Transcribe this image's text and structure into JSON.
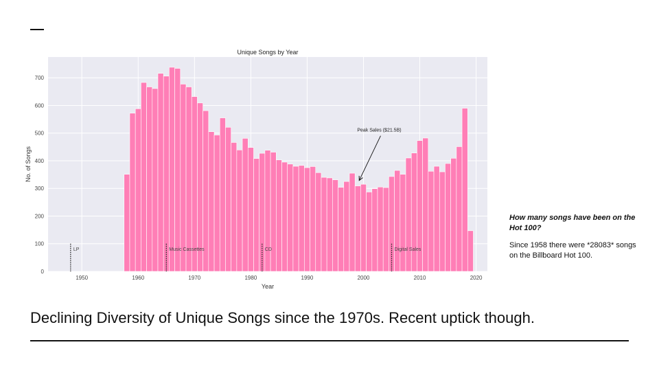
{
  "slide": {
    "question": "How many songs have been on the Hot 100?",
    "answer": "Since 1958 there were *28083* songs on the Billboard Hot 100.",
    "caption": "Declining Diversity of Unique Songs since the 1970s. Recent uptick though."
  },
  "chart_data": {
    "type": "bar",
    "title": "Unique Songs by Year",
    "xlabel": "Year",
    "ylabel": "No. of Songs",
    "xlim": [
      1944,
      2022
    ],
    "ylim": [
      0,
      775
    ],
    "xticks": [
      1950,
      1960,
      1970,
      1980,
      1990,
      2000,
      2010,
      2020
    ],
    "yticks": [
      0,
      100,
      200,
      300,
      400,
      500,
      600,
      700
    ],
    "grid": true,
    "bar_color": "#ff7eb6",
    "background_color": "#eaeaf2",
    "years": [
      1958,
      1959,
      1960,
      1961,
      1962,
      1963,
      1964,
      1965,
      1966,
      1967,
      1968,
      1969,
      1970,
      1971,
      1972,
      1973,
      1974,
      1975,
      1976,
      1977,
      1978,
      1979,
      1980,
      1981,
      1982,
      1983,
      1984,
      1985,
      1986,
      1987,
      1988,
      1989,
      1990,
      1991,
      1992,
      1993,
      1994,
      1995,
      1996,
      1997,
      1998,
      1999,
      2000,
      2001,
      2002,
      2003,
      2004,
      2005,
      2006,
      2007,
      2008,
      2009,
      2010,
      2011,
      2012,
      2013,
      2014,
      2015,
      2016,
      2017,
      2018,
      2019
    ],
    "values": [
      351,
      572,
      588,
      683,
      667,
      661,
      716,
      706,
      738,
      734,
      677,
      667,
      632,
      609,
      581,
      505,
      493,
      555,
      521,
      466,
      439,
      481,
      448,
      408,
      427,
      438,
      431,
      403,
      395,
      388,
      380,
      383,
      375,
      379,
      357,
      340,
      338,
      331,
      304,
      325,
      355,
      309,
      315,
      287,
      299,
      305,
      303,
      343,
      365,
      351,
      410,
      428,
      473,
      482,
      362,
      380,
      360,
      390,
      409,
      451,
      590,
      147
    ]
  },
  "markers": [
    {
      "year": 1948,
      "label": "LP"
    },
    {
      "year": 1965,
      "label": "Music Cassettes"
    },
    {
      "year": 1982,
      "label": "CD"
    },
    {
      "year": 2005,
      "label": "Digital Sales"
    }
  ],
  "annotation": {
    "text": "Peak Sales ($21.5B)",
    "year": 1999,
    "value": 309
  }
}
